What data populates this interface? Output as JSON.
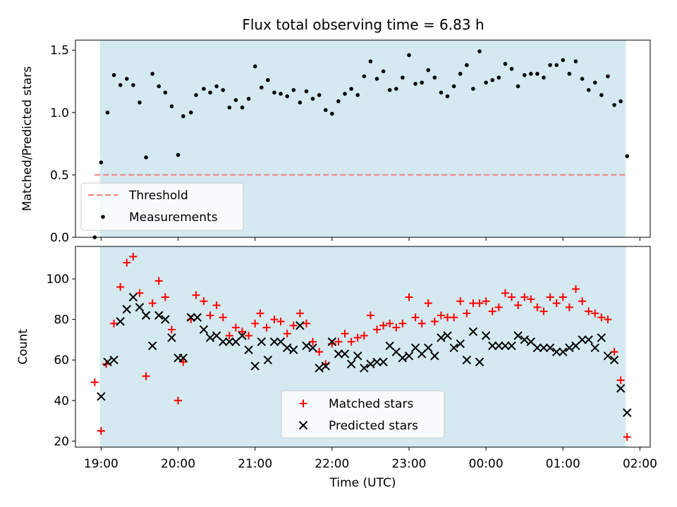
{
  "chart_data": [
    {
      "type": "scatter",
      "title": "Flux total observing time = 6.83 h",
      "xlabel": "",
      "ylabel": "Matched/Predicted stars",
      "ylim": [
        0,
        1.58
      ],
      "yticks": [
        "0.0",
        "0.5",
        "1.0",
        "1.5"
      ],
      "ytick_values": [
        0,
        0.5,
        1.0,
        1.5
      ],
      "x_range": [
        "18:40",
        "02:08"
      ],
      "shaded_interval": [
        "18:59",
        "01:49"
      ],
      "shade_color": "#d4e9f0",
      "threshold": {
        "name": "Threshold",
        "value": 0.5,
        "x_range": [
          "18:55",
          "01:49"
        ],
        "color": "#f07f7f",
        "style": "dashed"
      },
      "series": [
        {
          "name": "Measurements",
          "marker": "dot",
          "color": "#000000",
          "points": [
            [
              "18:55",
              0.0
            ],
            [
              "19:00",
              0.6
            ],
            [
              "19:05",
              1.0
            ],
            [
              "19:10",
              1.3
            ],
            [
              "19:15",
              1.22
            ],
            [
              "19:20",
              1.27
            ],
            [
              "19:25",
              1.22
            ],
            [
              "19:30",
              1.08
            ],
            [
              "19:35",
              0.64
            ],
            [
              "19:40",
              1.31
            ],
            [
              "19:45",
              1.21
            ],
            [
              "19:50",
              1.16
            ],
            [
              "19:55",
              1.05
            ],
            [
              "20:00",
              0.66
            ],
            [
              "20:04",
              0.97
            ],
            [
              "20:10",
              1.0
            ],
            [
              "20:14",
              1.14
            ],
            [
              "20:20",
              1.19
            ],
            [
              "20:25",
              1.16
            ],
            [
              "20:30",
              1.21
            ],
            [
              "20:35",
              1.18
            ],
            [
              "20:40",
              1.04
            ],
            [
              "20:45",
              1.1
            ],
            [
              "20:50",
              1.04
            ],
            [
              "20:55",
              1.11
            ],
            [
              "21:00",
              1.37
            ],
            [
              "21:05",
              1.2
            ],
            [
              "21:10",
              1.26
            ],
            [
              "21:15",
              1.16
            ],
            [
              "21:20",
              1.15
            ],
            [
              "21:25",
              1.13
            ],
            [
              "21:30",
              1.18
            ],
            [
              "21:35",
              1.08
            ],
            [
              "21:40",
              1.17
            ],
            [
              "21:45",
              1.11
            ],
            [
              "21:50",
              1.14
            ],
            [
              "21:55",
              1.02
            ],
            [
              "22:00",
              0.99
            ],
            [
              "22:05",
              1.09
            ],
            [
              "22:10",
              1.15
            ],
            [
              "22:15",
              1.19
            ],
            [
              "22:20",
              1.14
            ],
            [
              "22:25",
              1.29
            ],
            [
              "22:30",
              1.41
            ],
            [
              "22:35",
              1.27
            ],
            [
              "22:40",
              1.33
            ],
            [
              "22:45",
              1.18
            ],
            [
              "22:50",
              1.19
            ],
            [
              "22:55",
              1.28
            ],
            [
              "23:00",
              1.46
            ],
            [
              "23:05",
              1.23
            ],
            [
              "23:10",
              1.24
            ],
            [
              "23:15",
              1.34
            ],
            [
              "23:20",
              1.28
            ],
            [
              "23:25",
              1.16
            ],
            [
              "23:30",
              1.13
            ],
            [
              "23:35",
              1.21
            ],
            [
              "23:40",
              1.31
            ],
            [
              "23:45",
              1.38
            ],
            [
              "23:50",
              1.19
            ],
            [
              "23:55",
              1.49
            ],
            [
              "00:00",
              1.24
            ],
            [
              "00:05",
              1.26
            ],
            [
              "00:10",
              1.28
            ],
            [
              "00:15",
              1.39
            ],
            [
              "00:20",
              1.35
            ],
            [
              "00:25",
              1.21
            ],
            [
              "00:30",
              1.3
            ],
            [
              "00:35",
              1.31
            ],
            [
              "00:40",
              1.31
            ],
            [
              "00:45",
              1.28
            ],
            [
              "00:50",
              1.38
            ],
            [
              "00:55",
              1.38
            ],
            [
              "01:00",
              1.42
            ],
            [
              "01:05",
              1.31
            ],
            [
              "01:10",
              1.41
            ],
            [
              "01:15",
              1.27
            ],
            [
              "01:20",
              1.18
            ],
            [
              "01:25",
              1.24
            ],
            [
              "01:30",
              1.14
            ],
            [
              "01:35",
              1.29
            ],
            [
              "01:40",
              1.06
            ],
            [
              "01:45",
              1.09
            ],
            [
              "01:50",
              0.65
            ]
          ]
        }
      ],
      "legend": {
        "placement": "lower left",
        "entries": [
          "Threshold",
          "Measurements"
        ]
      }
    },
    {
      "type": "scatter",
      "title": "",
      "xlabel": "Time (UTC)",
      "ylabel": "Count",
      "ylim": [
        17,
        116
      ],
      "yticks": [
        "20",
        "40",
        "60",
        "80",
        "100"
      ],
      "ytick_values": [
        20,
        40,
        60,
        80,
        100
      ],
      "xticks": [
        "19:00",
        "20:00",
        "21:00",
        "22:00",
        "23:00",
        "00:00",
        "01:00",
        "02:00"
      ],
      "x_range": [
        "18:40",
        "02:08"
      ],
      "shaded_interval": [
        "18:59",
        "01:49"
      ],
      "shade_color": "#d4e9f0",
      "series": [
        {
          "name": "Matched stars",
          "marker": "plus",
          "color": "#ff0000",
          "points": [
            [
              "18:55",
              49
            ],
            [
              "19:00",
              25
            ],
            [
              "19:04",
              58
            ],
            [
              "19:10",
              78
            ],
            [
              "19:15",
              96
            ],
            [
              "19:20",
              108
            ],
            [
              "19:25",
              111
            ],
            [
              "19:30",
              93
            ],
            [
              "19:35",
              52
            ],
            [
              "19:40",
              88
            ],
            [
              "19:45",
              99
            ],
            [
              "19:50",
              91
            ],
            [
              "19:55",
              75
            ],
            [
              "20:00",
              40
            ],
            [
              "20:04",
              59
            ],
            [
              "20:10",
              80
            ],
            [
              "20:14",
              92
            ],
            [
              "20:20",
              89
            ],
            [
              "20:25",
              82
            ],
            [
              "20:30",
              87
            ],
            [
              "20:35",
              81
            ],
            [
              "20:40",
              72
            ],
            [
              "20:45",
              76
            ],
            [
              "20:50",
              74
            ],
            [
              "20:55",
              72
            ],
            [
              "21:00",
              78
            ],
            [
              "21:04",
              83
            ],
            [
              "21:09",
              76
            ],
            [
              "21:15",
              80
            ],
            [
              "21:20",
              79
            ],
            [
              "21:25",
              73
            ],
            [
              "21:30",
              77
            ],
            [
              "21:35",
              83
            ],
            [
              "21:40",
              78
            ],
            [
              "21:45",
              69
            ],
            [
              "21:50",
              64
            ],
            [
              "21:55",
              58
            ],
            [
              "22:00",
              68
            ],
            [
              "22:05",
              69
            ],
            [
              "22:10",
              73
            ],
            [
              "22:15",
              69
            ],
            [
              "22:20",
              71
            ],
            [
              "22:25",
              72
            ],
            [
              "22:30",
              82
            ],
            [
              "22:35",
              75
            ],
            [
              "22:40",
              77
            ],
            [
              "22:45",
              78
            ],
            [
              "22:50",
              76
            ],
            [
              "22:55",
              78
            ],
            [
              "23:00",
              91
            ],
            [
              "23:05",
              81
            ],
            [
              "23:10",
              78
            ],
            [
              "23:15",
              88
            ],
            [
              "23:20",
              79
            ],
            [
              "23:25",
              82
            ],
            [
              "23:30",
              81
            ],
            [
              "23:35",
              81
            ],
            [
              "23:40",
              89
            ],
            [
              "23:45",
              83
            ],
            [
              "23:50",
              88
            ],
            [
              "23:55",
              88
            ],
            [
              "00:00",
              89
            ],
            [
              "00:05",
              84
            ],
            [
              "00:10",
              86
            ],
            [
              "00:15",
              93
            ],
            [
              "00:20",
              91
            ],
            [
              "00:25",
              87
            ],
            [
              "00:30",
              91
            ],
            [
              "00:35",
              90
            ],
            [
              "00:40",
              86
            ],
            [
              "00:45",
              84
            ],
            [
              "00:50",
              91
            ],
            [
              "00:55",
              88
            ],
            [
              "01:00",
              91
            ],
            [
              "01:05",
              86
            ],
            [
              "01:10",
              95
            ],
            [
              "01:15",
              89
            ],
            [
              "01:20",
              84
            ],
            [
              "01:25",
              83
            ],
            [
              "01:30",
              81
            ],
            [
              "01:35",
              80
            ],
            [
              "01:40",
              64
            ],
            [
              "01:45",
              50
            ],
            [
              "01:50",
              22
            ]
          ]
        },
        {
          "name": "Predicted stars",
          "marker": "x",
          "color": "#000000",
          "points": [
            [
              "19:00",
              42
            ],
            [
              "19:05",
              59
            ],
            [
              "19:10",
              60
            ],
            [
              "19:15",
              79
            ],
            [
              "19:20",
              85
            ],
            [
              "19:25",
              91
            ],
            [
              "19:30",
              86
            ],
            [
              "19:35",
              82
            ],
            [
              "19:40",
              67
            ],
            [
              "19:45",
              82
            ],
            [
              "19:50",
              80
            ],
            [
              "19:55",
              71
            ],
            [
              "20:00",
              61
            ],
            [
              "20:04",
              61
            ],
            [
              "20:10",
              81
            ],
            [
              "20:15",
              81
            ],
            [
              "20:20",
              75
            ],
            [
              "20:25",
              71
            ],
            [
              "20:30",
              72
            ],
            [
              "20:35",
              69
            ],
            [
              "20:40",
              69
            ],
            [
              "20:45",
              69
            ],
            [
              "20:50",
              72
            ],
            [
              "20:55",
              65
            ],
            [
              "21:00",
              57
            ],
            [
              "21:05",
              69
            ],
            [
              "21:10",
              60
            ],
            [
              "21:15",
              69
            ],
            [
              "21:20",
              69
            ],
            [
              "21:25",
              66
            ],
            [
              "21:30",
              65
            ],
            [
              "21:35",
              77
            ],
            [
              "21:40",
              67
            ],
            [
              "21:45",
              66
            ],
            [
              "21:50",
              56
            ],
            [
              "21:55",
              57
            ],
            [
              "22:00",
              69
            ],
            [
              "22:05",
              63
            ],
            [
              "22:10",
              63
            ],
            [
              "22:15",
              58
            ],
            [
              "22:20",
              62
            ],
            [
              "22:25",
              56
            ],
            [
              "22:30",
              58
            ],
            [
              "22:35",
              59
            ],
            [
              "22:40",
              59
            ],
            [
              "22:45",
              67
            ],
            [
              "22:50",
              64
            ],
            [
              "22:55",
              61
            ],
            [
              "23:00",
              62
            ],
            [
              "23:05",
              66
            ],
            [
              "23:10",
              63
            ],
            [
              "23:15",
              66
            ],
            [
              "23:20",
              62
            ],
            [
              "23:25",
              71
            ],
            [
              "23:30",
              72
            ],
            [
              "23:35",
              66
            ],
            [
              "23:40",
              68
            ],
            [
              "23:45",
              60
            ],
            [
              "23:50",
              74
            ],
            [
              "23:55",
              59
            ],
            [
              "00:00",
              72
            ],
            [
              "00:05",
              67
            ],
            [
              "00:10",
              67
            ],
            [
              "00:15",
              67
            ],
            [
              "00:20",
              67
            ],
            [
              "00:25",
              72
            ],
            [
              "00:30",
              70
            ],
            [
              "00:35",
              69
            ],
            [
              "00:40",
              66
            ],
            [
              "00:45",
              66
            ],
            [
              "00:50",
              66
            ],
            [
              "00:55",
              64
            ],
            [
              "01:00",
              64
            ],
            [
              "01:05",
              66
            ],
            [
              "01:10",
              67
            ],
            [
              "01:15",
              70
            ],
            [
              "01:20",
              70
            ],
            [
              "01:25",
              66
            ],
            [
              "01:30",
              71
            ],
            [
              "01:35",
              62
            ],
            [
              "01:40",
              60
            ],
            [
              "01:45",
              46
            ],
            [
              "01:50",
              34
            ]
          ]
        }
      ],
      "legend": {
        "placement": "lower center",
        "entries": [
          "Matched stars",
          "Predicted stars"
        ]
      }
    }
  ]
}
